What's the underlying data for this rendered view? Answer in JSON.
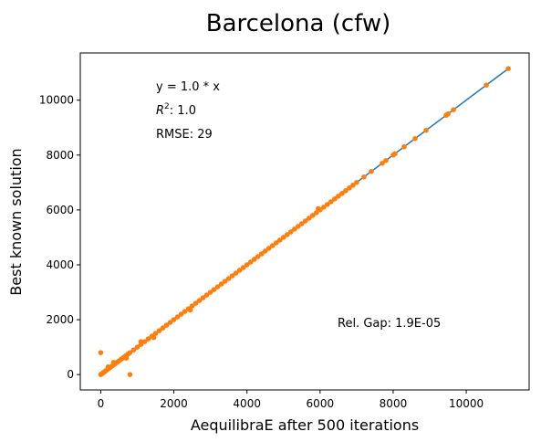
{
  "chart_data": {
    "type": "scatter",
    "title": "Barcelona (cfw)",
    "xlabel": "AequilibraE after 500 iterations",
    "ylabel": "Best known solution",
    "xlim": [
      -560,
      11720
    ],
    "ylim": [
      -560,
      11720
    ],
    "xticks": [
      0,
      2000,
      4000,
      6000,
      8000,
      10000
    ],
    "yticks": [
      0,
      2000,
      4000,
      6000,
      8000,
      10000
    ],
    "grid": false,
    "colors": {
      "fit_line": "#1f77b4",
      "points": "#ff7f0e"
    },
    "fit_line": {
      "x": [
        0,
        11150
      ],
      "y": [
        0,
        11150
      ]
    },
    "annotations": {
      "equation": "y = 1.0 * x",
      "r2_label": "R",
      "r2_sup": "2",
      "r2_value": ":  1.0",
      "rmse": "RMSE: 29",
      "rel_gap": "Rel. Gap: 1.9E-05"
    },
    "points": {
      "x": [
        0,
        20,
        40,
        60,
        80,
        100,
        120,
        150,
        200,
        250,
        300,
        350,
        400,
        450,
        500,
        550,
        600,
        650,
        700,
        750,
        800,
        900,
        1000,
        1100,
        1200,
        1300,
        1400,
        1500,
        1600,
        1700,
        1800,
        1900,
        2000,
        2100,
        2200,
        2300,
        2400,
        2500,
        2600,
        2700,
        2800,
        2900,
        3000,
        3100,
        3200,
        3300,
        3400,
        3500,
        3600,
        3700,
        3800,
        3900,
        4000,
        4100,
        4200,
        4300,
        4400,
        4500,
        4600,
        4700,
        4800,
        4900,
        5000,
        5100,
        5200,
        5300,
        5400,
        5500,
        5600,
        5700,
        5800,
        5900,
        6000,
        6100,
        6200,
        6300,
        6400,
        6500,
        6600,
        6700,
        6800,
        6900,
        7000,
        7200,
        7400,
        7700,
        7800,
        8000,
        8050,
        8300,
        8600,
        8900,
        9450,
        9500,
        9650,
        10550,
        11150,
        0,
        800,
        200,
        350,
        1100,
        1450,
        2450,
        700,
        5950
      ],
      "y": [
        0,
        20,
        40,
        60,
        80,
        100,
        120,
        150,
        200,
        250,
        300,
        350,
        400,
        450,
        500,
        550,
        600,
        650,
        700,
        750,
        800,
        900,
        1000,
        1100,
        1200,
        1300,
        1400,
        1500,
        1600,
        1700,
        1800,
        1900,
        2000,
        2100,
        2200,
        2300,
        2400,
        2500,
        2600,
        2700,
        2800,
        2900,
        3000,
        3100,
        3200,
        3300,
        3400,
        3500,
        3600,
        3700,
        3800,
        3900,
        4000,
        4100,
        4200,
        4300,
        4400,
        4500,
        4600,
        4700,
        4800,
        4900,
        5000,
        5100,
        5200,
        5300,
        5400,
        5500,
        5600,
        5700,
        5800,
        5900,
        6000,
        6100,
        6200,
        6300,
        6400,
        6500,
        6600,
        6700,
        6800,
        6900,
        7000,
        7200,
        7400,
        7700,
        7800,
        8000,
        8050,
        8300,
        8600,
        8900,
        9450,
        9500,
        9650,
        10550,
        11150,
        800,
        0,
        280,
        440,
        1200,
        1350,
        2350,
        600,
        6050
      ]
    }
  }
}
